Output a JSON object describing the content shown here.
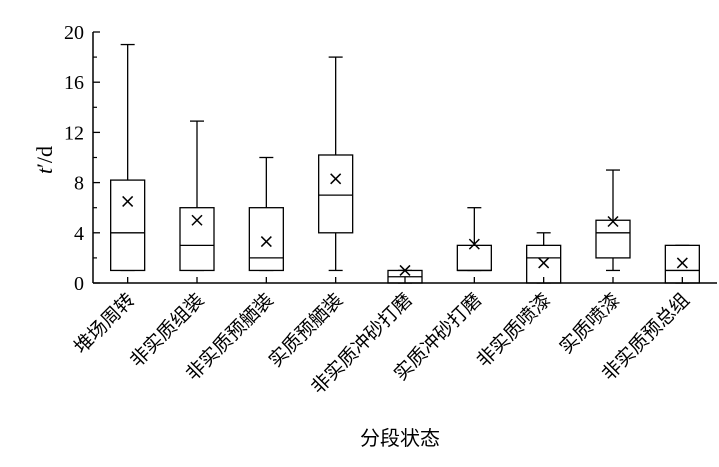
{
  "chart_data": {
    "type": "box",
    "xlabel": "分段状态",
    "ylabel": {
      "var": "t",
      "unit": "′/d"
    },
    "ylim": [
      0,
      20
    ],
    "yticks": [
      0,
      4,
      8,
      12,
      16,
      20
    ],
    "grid": false,
    "categories": [
      "堆场周转",
      "非实质组装",
      "非实质预舾装",
      "实质预舾装",
      "非实质冲砂打磨",
      "实质冲砂打磨",
      "非实质喷漆",
      "实质喷漆",
      "非实质预总组"
    ],
    "boxes": [
      {
        "min": 1,
        "q1": 1,
        "median": 4,
        "q3": 8.2,
        "max": 19,
        "mean": 6.5
      },
      {
        "min": 1,
        "q1": 1,
        "median": 3,
        "q3": 6,
        "max": 12.9,
        "mean": 5
      },
      {
        "min": 1,
        "q1": 1,
        "median": 2,
        "q3": 6,
        "max": 10,
        "mean": 3.3
      },
      {
        "min": 1,
        "q1": 4,
        "median": 7,
        "q3": 10.2,
        "max": 18,
        "mean": 8.3
      },
      {
        "min": 0,
        "q1": 0,
        "median": 0.5,
        "q3": 1,
        "max": 1,
        "mean": 1
      },
      {
        "min": 1,
        "q1": 1,
        "median": 1,
        "q3": 3,
        "max": 6,
        "mean": 3.1
      },
      {
        "min": 0,
        "q1": 0,
        "median": 2,
        "q3": 3,
        "max": 4,
        "mean": 1.6
      },
      {
        "min": 1,
        "q1": 2,
        "median": 4,
        "q3": 5,
        "max": 9,
        "mean": 4.9
      },
      {
        "min": 0,
        "q1": 0,
        "median": 1,
        "q3": 3,
        "max": 3,
        "mean": 1.6
      }
    ]
  }
}
